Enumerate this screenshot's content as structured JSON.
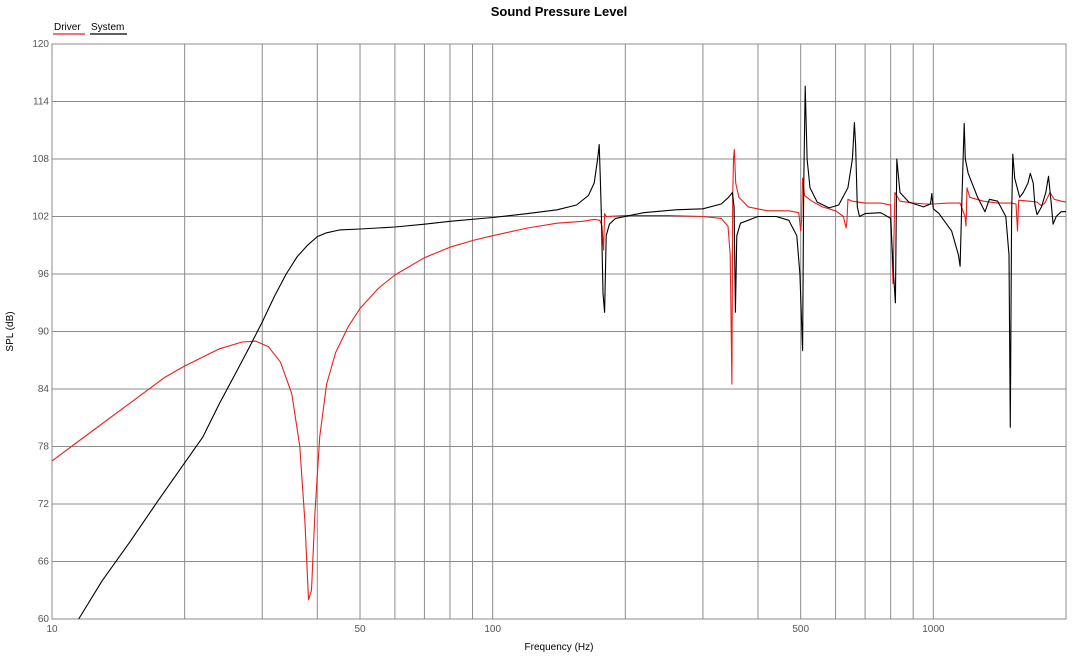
{
  "chart_data": {
    "type": "line",
    "title": "Sound Pressure Level",
    "xlabel": "Frequency (Hz)",
    "ylabel": "SPL (dB)",
    "x_scale": "log",
    "xlim": [
      10,
      2000
    ],
    "ylim": [
      60,
      120
    ],
    "y_ticks": [
      60,
      66,
      72,
      78,
      84,
      90,
      96,
      102,
      108,
      114,
      120
    ],
    "x_tick_labels": [
      {
        "value": 10,
        "label": "10"
      },
      {
        "value": 50,
        "label": "50"
      },
      {
        "value": 100,
        "label": "100"
      },
      {
        "value": 500,
        "label": "500"
      },
      {
        "value": 1000,
        "label": "1000"
      }
    ],
    "x_grid": [
      20,
      30,
      40,
      50,
      60,
      70,
      80,
      90,
      100,
      200,
      300,
      400,
      500,
      600,
      700,
      800,
      900,
      1000,
      2000
    ],
    "grid": true,
    "legend_position": "top-left",
    "series": [
      {
        "name": "Driver",
        "color": "#e8201c",
        "points": [
          [
            10,
            76.5
          ],
          [
            12,
            79.2
          ],
          [
            15,
            82.5
          ],
          [
            18,
            85.2
          ],
          [
            20,
            86.4
          ],
          [
            24,
            88.2
          ],
          [
            27,
            88.9
          ],
          [
            29,
            89.0
          ],
          [
            31,
            88.4
          ],
          [
            33,
            86.8
          ],
          [
            35,
            83.5
          ],
          [
            36.5,
            78.0
          ],
          [
            37.5,
            70.0
          ],
          [
            38.2,
            62.0
          ],
          [
            38.8,
            63.0
          ],
          [
            39.5,
            71.0
          ],
          [
            40.5,
            79.0
          ],
          [
            42,
            84.5
          ],
          [
            44,
            87.8
          ],
          [
            47,
            90.5
          ],
          [
            50,
            92.4
          ],
          [
            55,
            94.5
          ],
          [
            60,
            95.9
          ],
          [
            70,
            97.7
          ],
          [
            80,
            98.8
          ],
          [
            90,
            99.5
          ],
          [
            100,
            100.0
          ],
          [
            120,
            100.8
          ],
          [
            140,
            101.3
          ],
          [
            160,
            101.5
          ],
          [
            170,
            101.7
          ],
          [
            175,
            101.6
          ],
          [
            177,
            101.0
          ],
          [
            178.5,
            98.5
          ],
          [
            179.5,
            102.3
          ],
          [
            181,
            102.0
          ],
          [
            200,
            102.1
          ],
          [
            250,
            102.1
          ],
          [
            300,
            102.0
          ],
          [
            330,
            101.8
          ],
          [
            342,
            101.0
          ],
          [
            346,
            98.0
          ],
          [
            349,
            84.5
          ],
          [
            350.5,
            104.0
          ],
          [
            352,
            108.0
          ],
          [
            353.5,
            109.0
          ],
          [
            356,
            105.5
          ],
          [
            362,
            104.0
          ],
          [
            380,
            103.0
          ],
          [
            420,
            102.6
          ],
          [
            470,
            102.6
          ],
          [
            495,
            102.4
          ],
          [
            500,
            100.5
          ],
          [
            502.5,
            101.5
          ],
          [
            505,
            106.0
          ],
          [
            510,
            104.2
          ],
          [
            530,
            103.6
          ],
          [
            560,
            103.0
          ],
          [
            600,
            102.6
          ],
          [
            625,
            102.0
          ],
          [
            634,
            100.8
          ],
          [
            637,
            101.6
          ],
          [
            640,
            103.8
          ],
          [
            655,
            103.6
          ],
          [
            700,
            103.4
          ],
          [
            760,
            103.4
          ],
          [
            800,
            103.2
          ],
          [
            810,
            95.0
          ],
          [
            818,
            104.5
          ],
          [
            840,
            103.6
          ],
          [
            900,
            103.4
          ],
          [
            960,
            103.3
          ],
          [
            1000,
            103.3
          ],
          [
            1080,
            103.4
          ],
          [
            1150,
            103.4
          ],
          [
            1180,
            102.0
          ],
          [
            1186,
            101.0
          ],
          [
            1192,
            105.0
          ],
          [
            1210,
            104.0
          ],
          [
            1300,
            103.6
          ],
          [
            1400,
            103.4
          ],
          [
            1500,
            103.4
          ],
          [
            1540,
            103.3
          ],
          [
            1552,
            100.5
          ],
          [
            1562,
            103.7
          ],
          [
            1650,
            103.6
          ],
          [
            1720,
            103.5
          ],
          [
            1760,
            103.1
          ],
          [
            1790,
            103.4
          ],
          [
            1840,
            104.5
          ],
          [
            1880,
            103.8
          ],
          [
            1950,
            103.6
          ],
          [
            2000,
            103.5
          ]
        ]
      },
      {
        "name": "System",
        "color": "#000000",
        "points": [
          [
            11.5,
            60.0
          ],
          [
            13,
            64.0
          ],
          [
            15,
            68.0
          ],
          [
            17.5,
            72.5
          ],
          [
            20,
            76.3
          ],
          [
            22,
            79.0
          ],
          [
            24,
            82.5
          ],
          [
            26,
            85.5
          ],
          [
            28,
            88.3
          ],
          [
            30,
            91.0
          ],
          [
            32,
            93.7
          ],
          [
            34,
            96.0
          ],
          [
            36,
            97.8
          ],
          [
            38,
            99.0
          ],
          [
            40,
            99.9
          ],
          [
            42,
            100.3
          ],
          [
            45,
            100.6
          ],
          [
            50,
            100.7
          ],
          [
            60,
            100.9
          ],
          [
            70,
            101.2
          ],
          [
            80,
            101.5
          ],
          [
            100,
            101.9
          ],
          [
            120,
            102.3
          ],
          [
            140,
            102.7
          ],
          [
            155,
            103.2
          ],
          [
            165,
            104.2
          ],
          [
            170,
            105.5
          ],
          [
            173,
            108.0
          ],
          [
            174.5,
            109.5
          ],
          [
            175.5,
            106.0
          ],
          [
            176.5,
            102.0
          ],
          [
            178,
            94.0
          ],
          [
            179.5,
            92.0
          ],
          [
            181,
            100.0
          ],
          [
            184,
            101.2
          ],
          [
            190,
            101.8
          ],
          [
            220,
            102.4
          ],
          [
            260,
            102.7
          ],
          [
            300,
            102.8
          ],
          [
            330,
            103.3
          ],
          [
            343,
            104.0
          ],
          [
            350,
            104.5
          ],
          [
            353,
            103.0
          ],
          [
            355.5,
            92.0
          ],
          [
            358,
            100.0
          ],
          [
            365,
            101.3
          ],
          [
            400,
            102.0
          ],
          [
            440,
            102.0
          ],
          [
            470,
            101.6
          ],
          [
            490,
            100.0
          ],
          [
            498,
            96.0
          ],
          [
            505,
            88.0
          ],
          [
            508,
            105.0
          ],
          [
            512,
            115.6
          ],
          [
            517,
            108.0
          ],
          [
            525,
            105.0
          ],
          [
            545,
            103.5
          ],
          [
            580,
            102.9
          ],
          [
            610,
            103.2
          ],
          [
            640,
            105.0
          ],
          [
            655,
            108.0
          ],
          [
            662,
            111.8
          ],
          [
            666,
            109.5
          ],
          [
            672,
            103.0
          ],
          [
            680,
            102.0
          ],
          [
            700,
            102.3
          ],
          [
            760,
            102.4
          ],
          [
            800,
            101.8
          ],
          [
            812,
            96.0
          ],
          [
            820,
            93.0
          ],
          [
            826,
            108.0
          ],
          [
            840,
            104.5
          ],
          [
            880,
            103.5
          ],
          [
            950,
            103.0
          ],
          [
            985,
            103.3
          ],
          [
            992,
            104.4
          ],
          [
            1000,
            102.8
          ],
          [
            1030,
            102.3
          ],
          [
            1100,
            100.5
          ],
          [
            1140,
            98.0
          ],
          [
            1150,
            96.8
          ],
          [
            1160,
            103.0
          ],
          [
            1170,
            109.0
          ],
          [
            1175,
            111.7
          ],
          [
            1182,
            108.0
          ],
          [
            1200,
            106.5
          ],
          [
            1260,
            104.0
          ],
          [
            1310,
            102.5
          ],
          [
            1340,
            103.8
          ],
          [
            1400,
            103.6
          ],
          [
            1460,
            102.0
          ],
          [
            1485,
            98.0
          ],
          [
            1495,
            80.0
          ],
          [
            1505,
            102.0
          ],
          [
            1515,
            108.5
          ],
          [
            1530,
            106.0
          ],
          [
            1570,
            104.0
          ],
          [
            1600,
            104.5
          ],
          [
            1640,
            105.5
          ],
          [
            1660,
            106.5
          ],
          [
            1685,
            105.5
          ],
          [
            1700,
            103.2
          ],
          [
            1720,
            102.2
          ],
          [
            1760,
            103.0
          ],
          [
            1800,
            104.5
          ],
          [
            1825,
            106.2
          ],
          [
            1850,
            103.5
          ],
          [
            1870,
            101.2
          ],
          [
            1900,
            102.0
          ],
          [
            1950,
            102.5
          ],
          [
            2000,
            102.5
          ]
        ]
      }
    ]
  }
}
